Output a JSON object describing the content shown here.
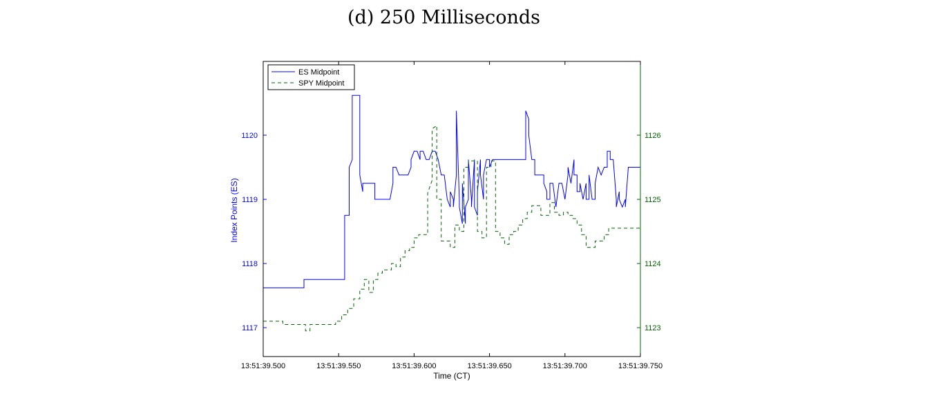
{
  "caption": "(d) 250 Milliseconds",
  "chart_data": {
    "type": "line",
    "xlabel": "Time (CT)",
    "ylabel_left": "Index Points (ES)",
    "ylabel_right": "",
    "x_tick_labels": [
      "13:51:39.500",
      "13:51:39.550",
      "13:51:39.600",
      "13:51:39.650",
      "13:51:39.700",
      "13:51:39.750"
    ],
    "x_ticks_ms": [
      500,
      550,
      600,
      650,
      700,
      750
    ],
    "xlim_ms": [
      500,
      750
    ],
    "ylim_left": [
      1116.55,
      1121.15
    ],
    "yticks_left": [
      1117,
      1118,
      1119,
      1120
    ],
    "ylim_right": [
      1122.55,
      1127.15
    ],
    "yticks_right": [
      1123,
      1124,
      1125,
      1126
    ],
    "colors": {
      "es": "#0000ff",
      "spy": "#006400"
    },
    "legend_position": "top-left",
    "series": [
      {
        "name": "ES Midpoint",
        "axis": "left",
        "style": "solid",
        "x": [
          500,
          527,
          527,
          531,
          531,
          543,
          543,
          545,
          545,
          547,
          547,
          549,
          549,
          554,
          554,
          557,
          557,
          559,
          559,
          561,
          561,
          564,
          564,
          566,
          566,
          574,
          574,
          580,
          580,
          582,
          582,
          584,
          584,
          586,
          586,
          588,
          588,
          590,
          590,
          592,
          592,
          594,
          594,
          596,
          596,
          598,
          598,
          600,
          600,
          602,
          602,
          604,
          604,
          606,
          606,
          608,
          608,
          610,
          610,
          612,
          612,
          614,
          614,
          616,
          616,
          618,
          618,
          620,
          620,
          622,
          622,
          624,
          624,
          626,
          626,
          628,
          628,
          630,
          630,
          632,
          632,
          634,
          634,
          636,
          636,
          638,
          638,
          640,
          640,
          642,
          642,
          644,
          644,
          646,
          646,
          648,
          648,
          650,
          650,
          652,
          652,
          654,
          654,
          656,
          656,
          658,
          658,
          660,
          660,
          662,
          662,
          664,
          664,
          666,
          666,
          668,
          668,
          670,
          670,
          672,
          672,
          674,
          674,
          676,
          676,
          678,
          678,
          680,
          680,
          682,
          682,
          684,
          684,
          686,
          686,
          688,
          688,
          690,
          690,
          692,
          692,
          694,
          694,
          696,
          696,
          698,
          698,
          700,
          700,
          702,
          702,
          704,
          704,
          706,
          706,
          708,
          708,
          710,
          710,
          712,
          712,
          714,
          714,
          716,
          716,
          718,
          718,
          720,
          720,
          722,
          722,
          724,
          724,
          726,
          726,
          728,
          728,
          730,
          730,
          732,
          732,
          734,
          734,
          736,
          736,
          738,
          738,
          740,
          740,
          742,
          742,
          744,
          744,
          746,
          746,
          748,
          748,
          750
        ],
        "y": [
          1117.62,
          1117.62,
          1117.75,
          1117.75,
          1117.75,
          1117.75,
          1117.75,
          1117.75,
          1117.75,
          1117.75,
          1117.75,
          1117.75,
          1117.75,
          1117.75,
          1118.75,
          1118.75,
          1119.5,
          1119.62,
          1120.62,
          1120.62,
          1120.62,
          1120.62,
          1119.38,
          1119.12,
          1119.25,
          1119.25,
          1119.0,
          1119.0,
          1119.0,
          1119.0,
          1119.0,
          1119.0,
          1119.0,
          1119.25,
          1119.5,
          1119.5,
          1119.5,
          1119.38,
          1119.38,
          1119.38,
          1119.38,
          1119.38,
          1119.38,
          1119.38,
          1119.38,
          1119.5,
          1119.62,
          1119.75,
          1119.75,
          1119.75,
          1119.75,
          1119.62,
          1119.75,
          1119.75,
          1119.75,
          1119.62,
          1119.62,
          1119.62,
          1119.62,
          1119.75,
          1119.75,
          1119.75,
          1119.75,
          1119.62,
          1119.62,
          1119.38,
          1119.38,
          1119.38,
          1119.38,
          1119.0,
          1119.0,
          1118.88,
          1119.12,
          1119.0,
          1118.88,
          1119.38,
          1120.38,
          1119.0,
          1118.88,
          1118.62,
          1119.25,
          1118.62,
          1118.88,
          1119.0,
          1119.62,
          1119.0,
          1118.88,
          1119.62,
          1118.88,
          1118.75,
          1119.12,
          1119.62,
          1119.38,
          1119.0,
          1119.38,
          1119.62,
          1119.62,
          1119.62,
          1119.5,
          1119.62,
          1119.62,
          1119.62,
          1119.62,
          1119.62,
          1119.62,
          1119.62,
          1119.62,
          1119.62,
          1119.62,
          1119.62,
          1119.62,
          1119.62,
          1119.62,
          1119.62,
          1119.62,
          1119.62,
          1119.62,
          1119.62,
          1119.62,
          1119.62,
          1119.62,
          1119.62,
          1120.38,
          1120.25,
          1120.0,
          1119.62,
          1119.62,
          1119.62,
          1119.38,
          1119.38,
          1119.38,
          1119.38,
          1119.38,
          1119.38,
          1119.25,
          1119.12,
          1119.0,
          1119.0,
          1119.25,
          1119.25,
          1119.25,
          1118.88,
          1118.88,
          1119.25,
          1119.25,
          1119.25,
          1119.25,
          1119.0,
          1119.0,
          1119.38,
          1119.5,
          1119.25,
          1119.25,
          1119.62,
          1119.38,
          1119.38,
          1119.12,
          1119.12,
          1119.25,
          1119.0,
          1119.0,
          1119.25,
          1119.0,
          1119.0,
          1119.38,
          1119.0,
          1119.0,
          1119.0,
          1119.25,
          1119.5,
          1119.5,
          1119.38,
          1119.38,
          1119.5,
          1119.5,
          1119.5,
          1119.75,
          1119.75,
          1119.62,
          1119.62,
          1119.62,
          1119.0,
          1118.88,
          1119.12,
          1119.0,
          1118.88,
          1118.88,
          1119.0,
          1118.88,
          1119.5,
          1119.5,
          1119.5,
          1119.5,
          1119.5,
          1119.5,
          1119.5,
          1119.5,
          1119.5
        ]
      },
      {
        "name": "SPY Midpoint",
        "axis": "right",
        "style": "dashed",
        "x": [
          500,
          513,
          513,
          528,
          528,
          531,
          531,
          535,
          535,
          546,
          546,
          548,
          548,
          552,
          552,
          556,
          556,
          560,
          560,
          564,
          564,
          567,
          567,
          570,
          570,
          573,
          573,
          576,
          576,
          579,
          579,
          582,
          582,
          585,
          585,
          588,
          588,
          591,
          591,
          594,
          594,
          597,
          597,
          600,
          600,
          603,
          603,
          606,
          606,
          609,
          609,
          612,
          612,
          615,
          615,
          618,
          618,
          621,
          621,
          624,
          624,
          627,
          627,
          630,
          630,
          633,
          633,
          636,
          636,
          639,
          639,
          642,
          642,
          645,
          645,
          648,
          648,
          651,
          651,
          654,
          654,
          657,
          657,
          660,
          660,
          663,
          663,
          666,
          666,
          669,
          669,
          672,
          672,
          675,
          675,
          678,
          678,
          681,
          681,
          684,
          684,
          687,
          687,
          690,
          690,
          693,
          693,
          696,
          696,
          699,
          699,
          702,
          702,
          705,
          705,
          708,
          708,
          711,
          711,
          714,
          714,
          717,
          717,
          720,
          720,
          723,
          723,
          726,
          726,
          729,
          729,
          732,
          732,
          735,
          735,
          738,
          738,
          741,
          741,
          744,
          744,
          747,
          747,
          750
        ],
        "y": [
          1123.1,
          1123.1,
          1123.05,
          1123.05,
          1122.95,
          1122.95,
          1123.05,
          1123.05,
          1123.05,
          1123.05,
          1123.05,
          1123.05,
          1123.1,
          1123.1,
          1123.2,
          1123.2,
          1123.3,
          1123.3,
          1123.45,
          1123.45,
          1123.6,
          1123.6,
          1123.75,
          1123.75,
          1123.55,
          1123.55,
          1123.75,
          1123.75,
          1123.85,
          1123.85,
          1123.9,
          1123.9,
          1123.9,
          1123.9,
          1124.0,
          1124.0,
          1123.95,
          1123.95,
          1124.1,
          1124.1,
          1124.2,
          1124.2,
          1124.25,
          1124.25,
          1124.4,
          1124.4,
          1124.45,
          1124.45,
          1124.45,
          1124.45,
          1125.1,
          1125.3,
          1126.1,
          1126.15,
          1125.0,
          1125.0,
          1124.35,
          1124.35,
          1124.35,
          1124.35,
          1124.25,
          1124.25,
          1124.6,
          1124.6,
          1124.5,
          1124.5,
          1125.5,
          1125.5,
          1125.6,
          1125.6,
          1125.6,
          1125.6,
          1124.5,
          1124.5,
          1124.4,
          1124.4,
          1125.5,
          1125.5,
          1125.6,
          1125.6,
          1124.5,
          1124.5,
          1124.4,
          1124.4,
          1124.3,
          1124.3,
          1124.45,
          1124.45,
          1124.5,
          1124.5,
          1124.6,
          1124.6,
          1124.7,
          1124.7,
          1124.8,
          1124.8,
          1124.9,
          1124.9,
          1124.9,
          1124.9,
          1124.75,
          1124.75,
          1124.75,
          1124.75,
          1124.95,
          1124.95,
          1124.8,
          1124.8,
          1124.75,
          1124.75,
          1124.8,
          1124.8,
          1124.75,
          1124.75,
          1124.7,
          1124.7,
          1124.6,
          1124.6,
          1124.45,
          1124.45,
          1124.25,
          1124.25,
          1124.25,
          1124.25,
          1124.35,
          1124.35,
          1124.35,
          1124.35,
          1124.45,
          1124.45,
          1124.55,
          1124.55,
          1124.55,
          1124.55,
          1124.55,
          1124.55,
          1124.55,
          1124.55,
          1124.55,
          1124.55,
          1124.55,
          1124.55,
          1124.55,
          1124.55
        ]
      }
    ]
  }
}
